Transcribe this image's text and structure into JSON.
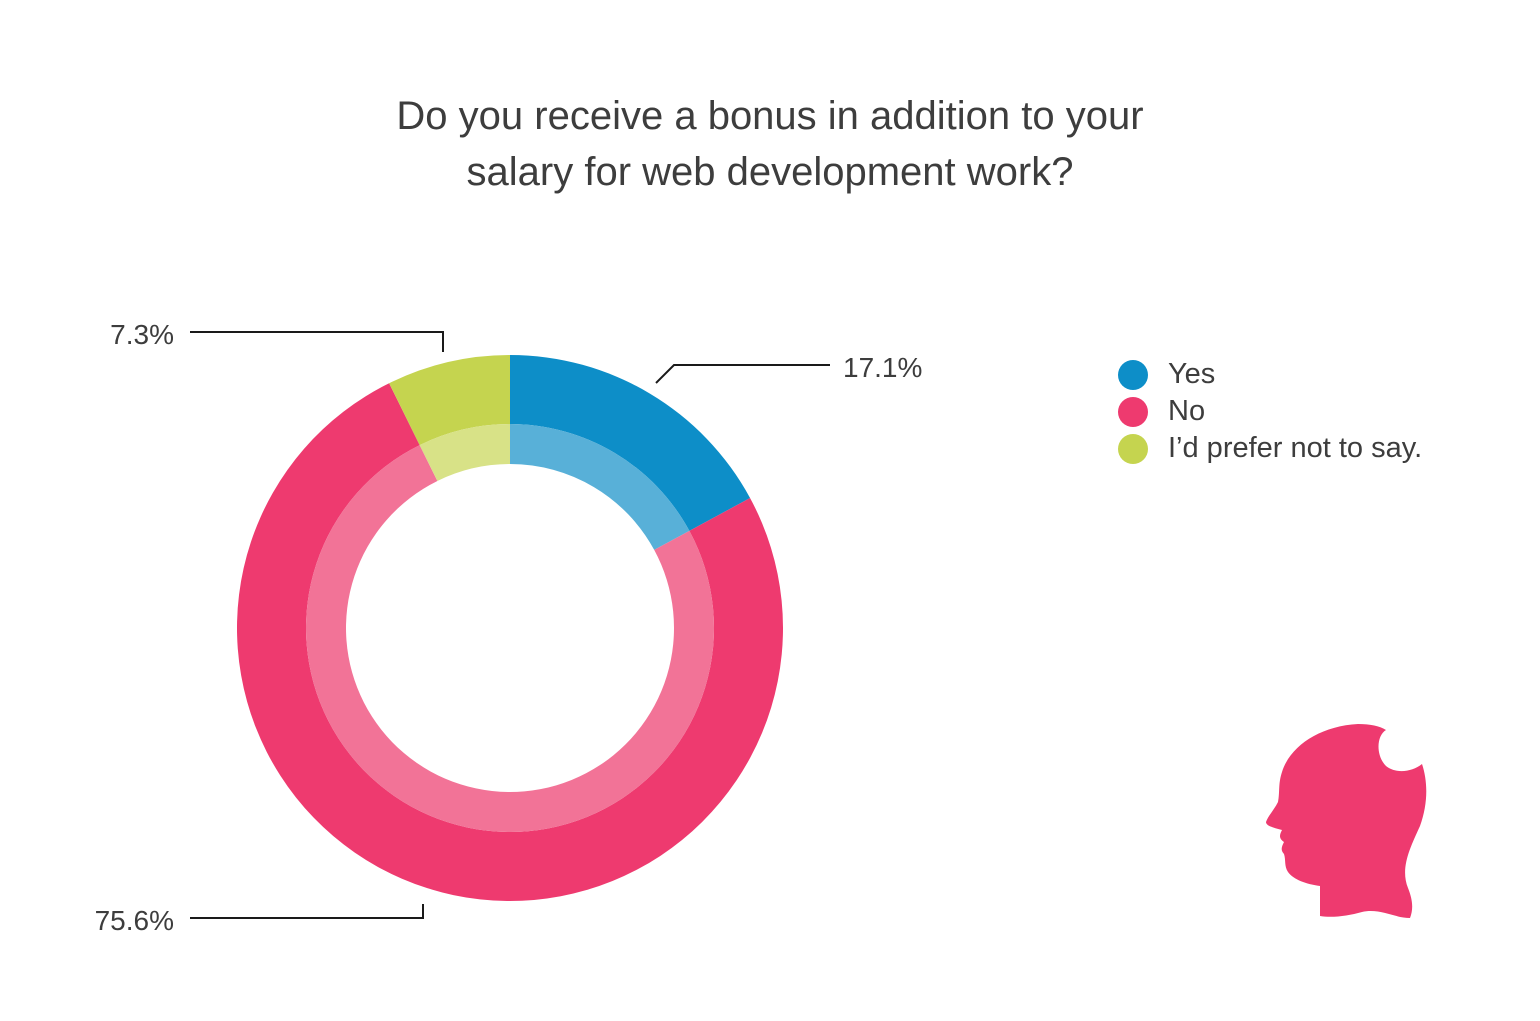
{
  "title_lines": [
    "Do you receive a bonus in addition to your",
    "salary for web development work?"
  ],
  "chart_data": {
    "type": "pie",
    "variant": "donut",
    "title": "Do you receive a bonus in addition to your salary for web development work?",
    "categories": [
      "Yes",
      "No",
      "I’d prefer not to say."
    ],
    "values": [
      17.1,
      75.6,
      7.3
    ],
    "unit": "%",
    "data_labels": [
      "17.1%",
      "75.6%",
      "7.3%"
    ],
    "colors": [
      "#0d8ec8",
      "#ee3a6f",
      "#c5d44f"
    ],
    "inner_colors": [
      "#58b0d8",
      "#f27397",
      "#d8e287"
    ],
    "start": "12 o'clock",
    "direction": "clockwise",
    "legend": "right"
  },
  "legend": {
    "items": [
      {
        "label": "Yes",
        "color": "#0d8ec8"
      },
      {
        "label": "No",
        "color": "#ee3a6f"
      },
      {
        "label": "I’d prefer not to say.",
        "color": "#c5d44f"
      }
    ]
  },
  "logo": {
    "icon": "head-silhouette-icon",
    "color": "#ee3a6f"
  }
}
